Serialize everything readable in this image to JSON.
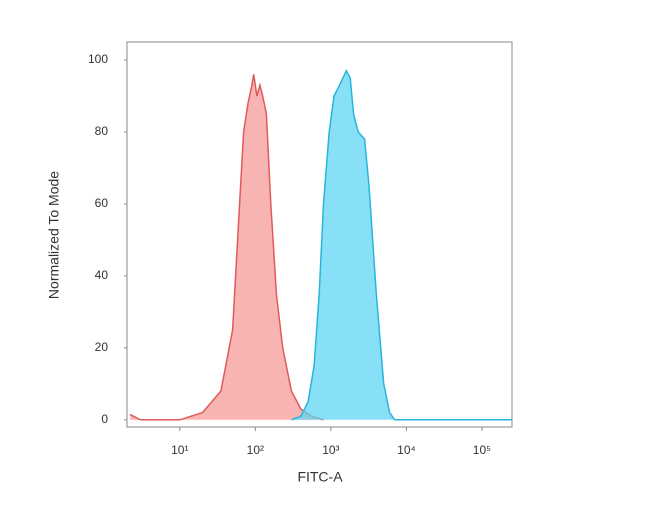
{
  "chart_data": {
    "type": "histogram-overlay",
    "x_label": "FITC-A",
    "y_label": "Normalized To Mode",
    "xscale": "log",
    "xlim": [
      2,
      250000
    ],
    "ylim": [
      -2,
      105
    ],
    "xticks": [
      {
        "value": 10,
        "label": "10¹"
      },
      {
        "value": 100,
        "label": "10²"
      },
      {
        "value": 1000,
        "label": "10³"
      },
      {
        "value": 10000,
        "label": "10⁴"
      },
      {
        "value": 100000,
        "label": "10⁵"
      }
    ],
    "yticks": [
      0,
      20,
      40,
      60,
      80,
      100
    ],
    "series": [
      {
        "color": "#e05a5a",
        "fill": "#f59a9a",
        "x": [
          2.2,
          3,
          10,
          20,
          35,
          50,
          60,
          70,
          80,
          90,
          95,
          105,
          115,
          125,
          140,
          160,
          190,
          230,
          300,
          400,
          550,
          800
        ],
        "values": [
          1.5,
          0,
          0,
          2,
          8,
          25,
          55,
          80,
          88,
          93,
          96,
          90,
          93,
          90,
          85,
          60,
          35,
          20,
          8,
          3,
          1,
          0
        ]
      },
      {
        "color": "#27b6d9",
        "fill": "#5fd6f2",
        "x": [
          300,
          400,
          500,
          600,
          700,
          800,
          950,
          1100,
          1300,
          1600,
          1800,
          2000,
          2300,
          2800,
          3200,
          4000,
          5000,
          6000,
          7000,
          250000
        ],
        "values": [
          0,
          1,
          5,
          15,
          35,
          60,
          80,
          90,
          93,
          97,
          95,
          85,
          80,
          78,
          65,
          35,
          10,
          2,
          0,
          0
        ]
      }
    ]
  }
}
